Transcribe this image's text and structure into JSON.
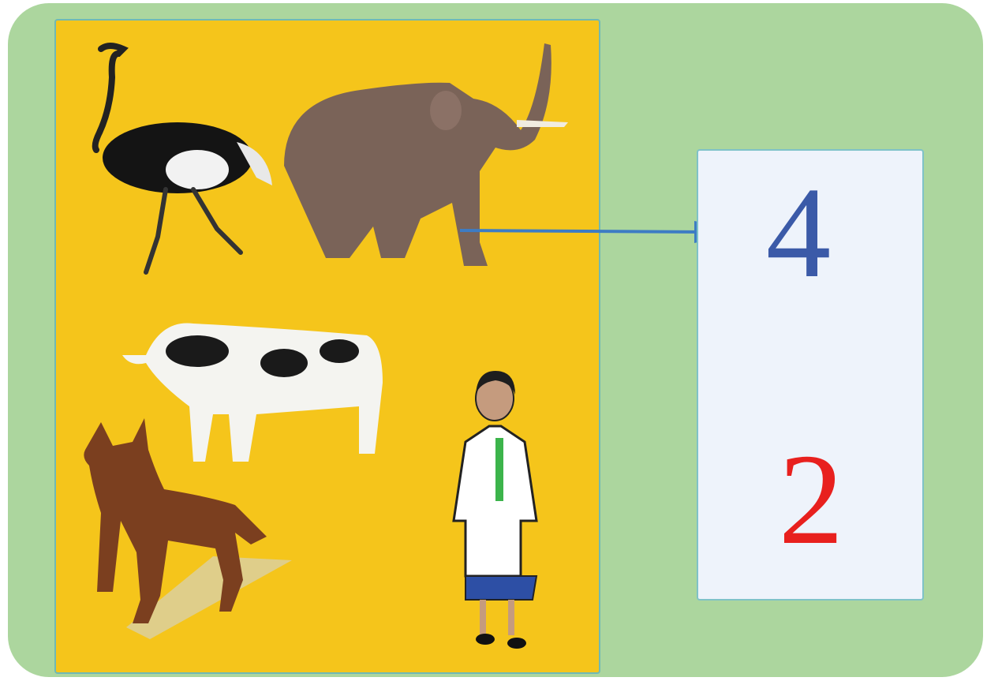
{
  "card": {
    "top_number": "4",
    "bottom_number": "2"
  }
}
